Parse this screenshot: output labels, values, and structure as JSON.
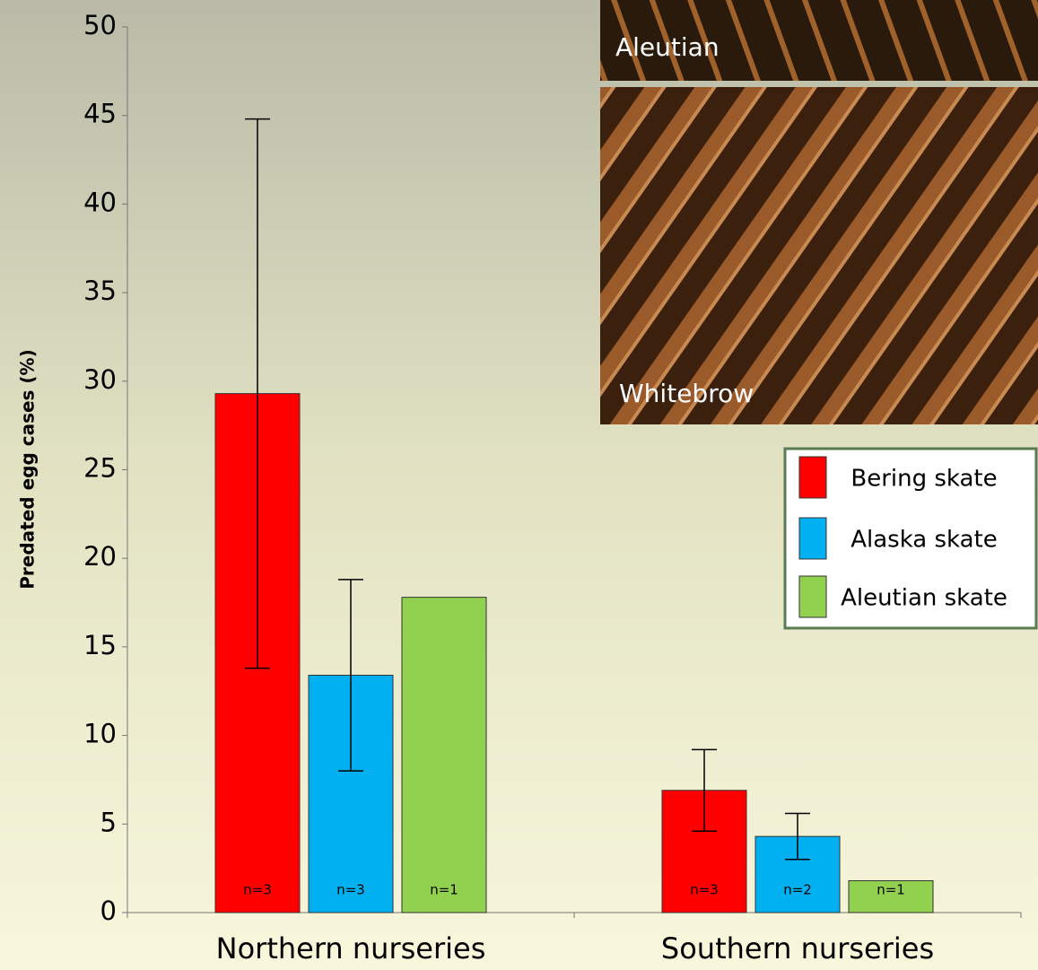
{
  "chart_data": {
    "type": "bar",
    "y_label": "Predated egg cases (%)",
    "categories": [
      "Northern nurseries",
      "Southern nurseries"
    ],
    "series": [
      {
        "name": "Bering skate",
        "color": "#ff0000",
        "values": [
          29.3,
          6.9
        ],
        "errors": [
          15.5,
          2.3
        ],
        "sample_sizes": [
          "n=3",
          "n=3"
        ]
      },
      {
        "name": "Alaska skate",
        "color": "#00b0f0",
        "values": [
          13.4,
          4.3
        ],
        "errors": [
          5.4,
          1.3
        ],
        "sample_sizes": [
          "n=3",
          "n=2"
        ]
      },
      {
        "name": "Aleutian skate",
        "color": "#92d050",
        "values": [
          17.8,
          1.8
        ],
        "errors": [
          null,
          null
        ],
        "sample_sizes": [
          "n=1",
          "n=1"
        ]
      }
    ],
    "ylim": [
      0,
      50
    ],
    "yticks": [
      0,
      5,
      10,
      15,
      20,
      25,
      30,
      35,
      40,
      45,
      50
    ],
    "legend": "upper right"
  },
  "photos": [
    {
      "label": "Aleutian"
    },
    {
      "label": "Whitebrow"
    }
  ]
}
